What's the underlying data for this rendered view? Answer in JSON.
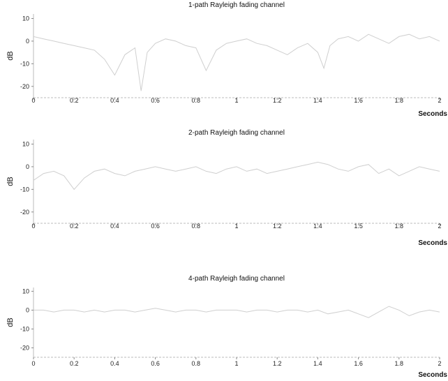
{
  "chart_data": [
    {
      "type": "line",
      "title": "1-path  Rayleigh fading channel",
      "xlabel": "Seconds",
      "ylabel": "dB",
      "xlim": [
        0,
        2
      ],
      "ylim": [
        -25,
        12
      ],
      "xticks": [
        "0",
        "0.2",
        "0.4",
        "0.6",
        "0.8",
        "1",
        "1.2",
        "1.4",
        "1.6",
        "1.8",
        "2"
      ],
      "yticks": [
        "10",
        "0",
        "-10",
        "-20"
      ],
      "grid": false,
      "legend": "none",
      "line_color": "#cfcfcf",
      "series": [
        {
          "x": [
            0,
            0.05,
            0.1,
            0.15,
            0.2,
            0.25,
            0.3,
            0.35,
            0.4,
            0.45,
            0.5,
            0.53,
            0.56,
            0.6,
            0.65,
            0.7,
            0.75,
            0.8,
            0.85,
            0.9,
            0.95,
            1.0,
            1.05,
            1.1,
            1.15,
            1.2,
            1.25,
            1.3,
            1.35,
            1.4,
            1.43,
            1.46,
            1.5,
            1.55,
            1.6,
            1.65,
            1.7,
            1.75,
            1.8,
            1.85,
            1.9,
            1.95,
            2.0
          ],
          "values": [
            2,
            1,
            0,
            -1,
            -2,
            -3,
            -4,
            -8,
            -15,
            -6,
            -3,
            -22,
            -5,
            -1,
            1,
            0,
            -2,
            -3,
            -13,
            -4,
            -1,
            0,
            1,
            -1,
            -2,
            -4,
            -6,
            -3,
            -1,
            -5,
            -12,
            -2,
            1,
            2,
            0,
            3,
            1,
            -1,
            2,
            3,
            1,
            2,
            0
          ]
        }
      ]
    },
    {
      "type": "line",
      "title": "2-path  Rayleigh fading channel",
      "xlabel": "Seconds",
      "ylabel": "dB",
      "xlim": [
        0,
        2
      ],
      "ylim": [
        -25,
        12
      ],
      "xticks": [
        "0",
        "0.2",
        "0.4",
        "0.6",
        "0.8",
        "1",
        "1.2",
        "1.4",
        "1.5",
        "1.8",
        "2"
      ],
      "yticks": [
        "10",
        "0",
        "-10",
        "-20"
      ],
      "grid": false,
      "legend": "none",
      "line_color": "#cfcfcf",
      "series": [
        {
          "x": [
            0,
            0.05,
            0.1,
            0.15,
            0.2,
            0.25,
            0.3,
            0.35,
            0.4,
            0.45,
            0.5,
            0.55,
            0.6,
            0.65,
            0.7,
            0.75,
            0.8,
            0.85,
            0.9,
            0.95,
            1.0,
            1.05,
            1.1,
            1.15,
            1.2,
            1.25,
            1.3,
            1.35,
            1.4,
            1.45,
            1.5,
            1.55,
            1.6,
            1.65,
            1.7,
            1.75,
            1.8,
            1.85,
            1.9,
            1.95,
            2.0
          ],
          "values": [
            -6,
            -3,
            -2,
            -4,
            -10,
            -5,
            -2,
            -1,
            -3,
            -4,
            -2,
            -1,
            0,
            -1,
            -2,
            -1,
            0,
            -2,
            -3,
            -1,
            0,
            -2,
            -1,
            -3,
            -2,
            -1,
            0,
            1,
            2,
            1,
            -1,
            -2,
            0,
            1,
            -3,
            -1,
            -4,
            -2,
            0,
            -1,
            -2
          ]
        }
      ]
    },
    {
      "type": "line",
      "title": "4-path  Rayleigh fading channel",
      "xlabel": "Seconds",
      "ylabel": "dB",
      "xlim": [
        0,
        2
      ],
      "ylim": [
        -25,
        12
      ],
      "xticks": [
        "0",
        "0.2",
        "0.4",
        "0.6",
        "0.8",
        "1",
        "1.2",
        "1.4",
        "1.6",
        "1.8",
        "2"
      ],
      "yticks": [
        "10",
        "0",
        "-10",
        "-20"
      ],
      "grid": false,
      "legend": "none",
      "line_color": "#cfcfcf",
      "series": [
        {
          "x": [
            0,
            0.05,
            0.1,
            0.15,
            0.2,
            0.25,
            0.3,
            0.35,
            0.4,
            0.45,
            0.5,
            0.55,
            0.6,
            0.65,
            0.7,
            0.75,
            0.8,
            0.85,
            0.9,
            0.95,
            1.0,
            1.05,
            1.1,
            1.15,
            1.2,
            1.25,
            1.3,
            1.35,
            1.4,
            1.45,
            1.5,
            1.55,
            1.6,
            1.65,
            1.7,
            1.75,
            1.8,
            1.85,
            1.9,
            1.95,
            2.0
          ],
          "values": [
            0,
            0,
            -1,
            0,
            0,
            -1,
            0,
            -1,
            0,
            0,
            -1,
            0,
            1,
            0,
            -1,
            0,
            0,
            -1,
            0,
            0,
            0,
            -1,
            0,
            0,
            -1,
            0,
            0,
            -1,
            0,
            -2,
            -1,
            0,
            -2,
            -4,
            -1,
            2,
            0,
            -3,
            -1,
            0,
            -1
          ]
        }
      ]
    }
  ]
}
